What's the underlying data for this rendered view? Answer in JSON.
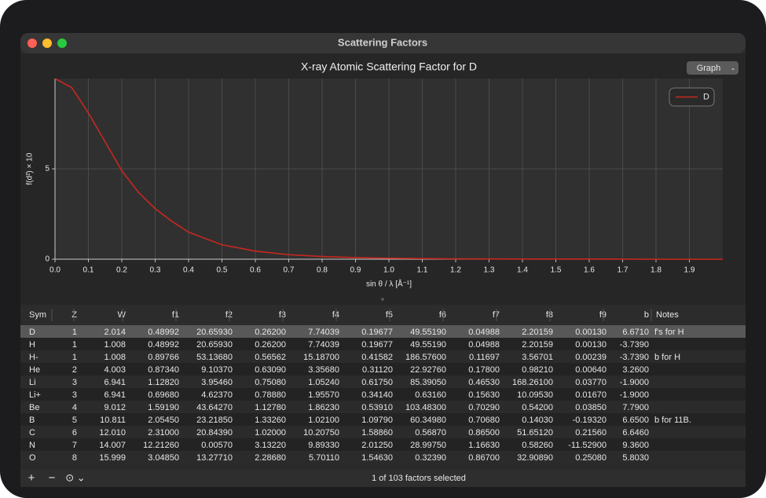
{
  "window": {
    "title": "Scattering Factors",
    "view_menu": "Graph"
  },
  "chart_data": {
    "type": "line",
    "title": "X-ray Atomic Scattering Factor for D",
    "x_label": "sin θ / λ [Å⁻¹]",
    "y_label": "f(d²) × 10",
    "x": [
      0,
      0.05,
      0.1,
      0.15,
      0.2,
      0.25,
      0.3,
      0.35,
      0.4,
      0.5,
      0.6,
      0.7,
      0.8,
      0.9,
      1.0,
      1.2,
      1.4,
      1.6,
      1.8,
      2.0
    ],
    "series": [
      {
        "name": "D",
        "color": "#c8281f",
        "values": [
          10,
          9.5,
          8.1,
          6.5,
          4.9,
          3.7,
          2.8,
          2.1,
          1.5,
          0.8,
          0.45,
          0.25,
          0.15,
          0.09,
          0.05,
          0.02,
          0.01,
          0.01,
          0,
          0
        ]
      }
    ],
    "xlim": [
      0,
      2
    ],
    "ylim": [
      0,
      10
    ],
    "xticks": [
      {
        "value": 0,
        "label": "0.0"
      },
      0.1,
      0.2,
      0.3,
      0.4,
      0.5,
      0.6,
      0.7,
      0.8,
      0.9,
      {
        "value": 1,
        "label": "1.0"
      },
      1.1,
      1.2,
      1.3,
      1.4,
      1.5,
      1.6,
      1.7,
      1.8,
      1.9
    ],
    "yticks": [
      0,
      5
    ],
    "grid": true,
    "legend": "top-right"
  },
  "table": {
    "columns": [
      "Sym",
      "Z",
      "W",
      "f1",
      "f2",
      "f3",
      "f4",
      "f5",
      "f6",
      "f7",
      "f8",
      "f9",
      "b",
      "Notes"
    ],
    "rows": [
      [
        "D",
        "1",
        "2.014",
        "0.48992",
        "20.65930",
        "0.26200",
        "7.74039",
        "0.19677",
        "49.55190",
        "0.04988",
        "2.20159",
        "0.00130",
        "6.6710",
        "f's for H"
      ],
      [
        "H",
        "1",
        "1.008",
        "0.48992",
        "20.65930",
        "0.26200",
        "7.74039",
        "0.19677",
        "49.55190",
        "0.04988",
        "2.20159",
        "0.00130",
        "-3.7390",
        null
      ],
      [
        "H-",
        "1",
        "1.008",
        "0.89766",
        "53.13680",
        "0.56562",
        "15.18700",
        "0.41582",
        "186.57600",
        "0.11697",
        "3.56701",
        "0.00239",
        "-3.7390",
        "b for H"
      ],
      [
        "He",
        "2",
        "4.003",
        "0.87340",
        "9.10370",
        "0.63090",
        "3.35680",
        "0.31120",
        "22.92760",
        "0.17800",
        "0.98210",
        "0.00640",
        "3.2600",
        null
      ],
      [
        "Li",
        "3",
        "6.941",
        "1.12820",
        "3.95460",
        "0.75080",
        "1.05240",
        "0.61750",
        "85.39050",
        "0.46530",
        "168.26100",
        "0.03770",
        "-1.9000",
        null
      ],
      [
        "Li+",
        "3",
        "6.941",
        "0.69680",
        "4.62370",
        "0.78880",
        "1.95570",
        "0.34140",
        "0.63160",
        "0.15630",
        "10.09530",
        "0.01670",
        "-1.9000",
        null
      ],
      [
        "Be",
        "4",
        "9.012",
        "1.59190",
        "43.64270",
        "1.12780",
        "1.86230",
        "0.53910",
        "103.48300",
        "0.70290",
        "0.54200",
        "0.03850",
        "7.7900",
        null
      ],
      [
        "B",
        "5",
        "10.811",
        "2.05450",
        "23.21850",
        "1.33260",
        "1.02100",
        "1.09790",
        "60.34980",
        "0.70680",
        "0.14030",
        "-0.19320",
        "6.6500",
        "b for 11B."
      ],
      [
        "C",
        "6",
        "12.010",
        "2.31000",
        "20.84390",
        "1.02000",
        "10.20750",
        "1.58860",
        "0.56870",
        "0.86500",
        "51.65120",
        "0.21560",
        "6.6460",
        null
      ],
      [
        "N",
        "7",
        "14.007",
        "12.21260",
        "0.00570",
        "3.13220",
        "9.89330",
        "2.01250",
        "28.99750",
        "1.16630",
        "0.58260",
        "-11.52900",
        "9.3600",
        null
      ],
      [
        "O",
        "8",
        "15.999",
        "3.04850",
        "13.27710",
        "2.28680",
        "5.70110",
        "1.54630",
        "0.32390",
        "0.86700",
        "32.90890",
        "0.25080",
        "5.8030",
        null
      ]
    ],
    "status": "1 of 103 factors selected"
  }
}
